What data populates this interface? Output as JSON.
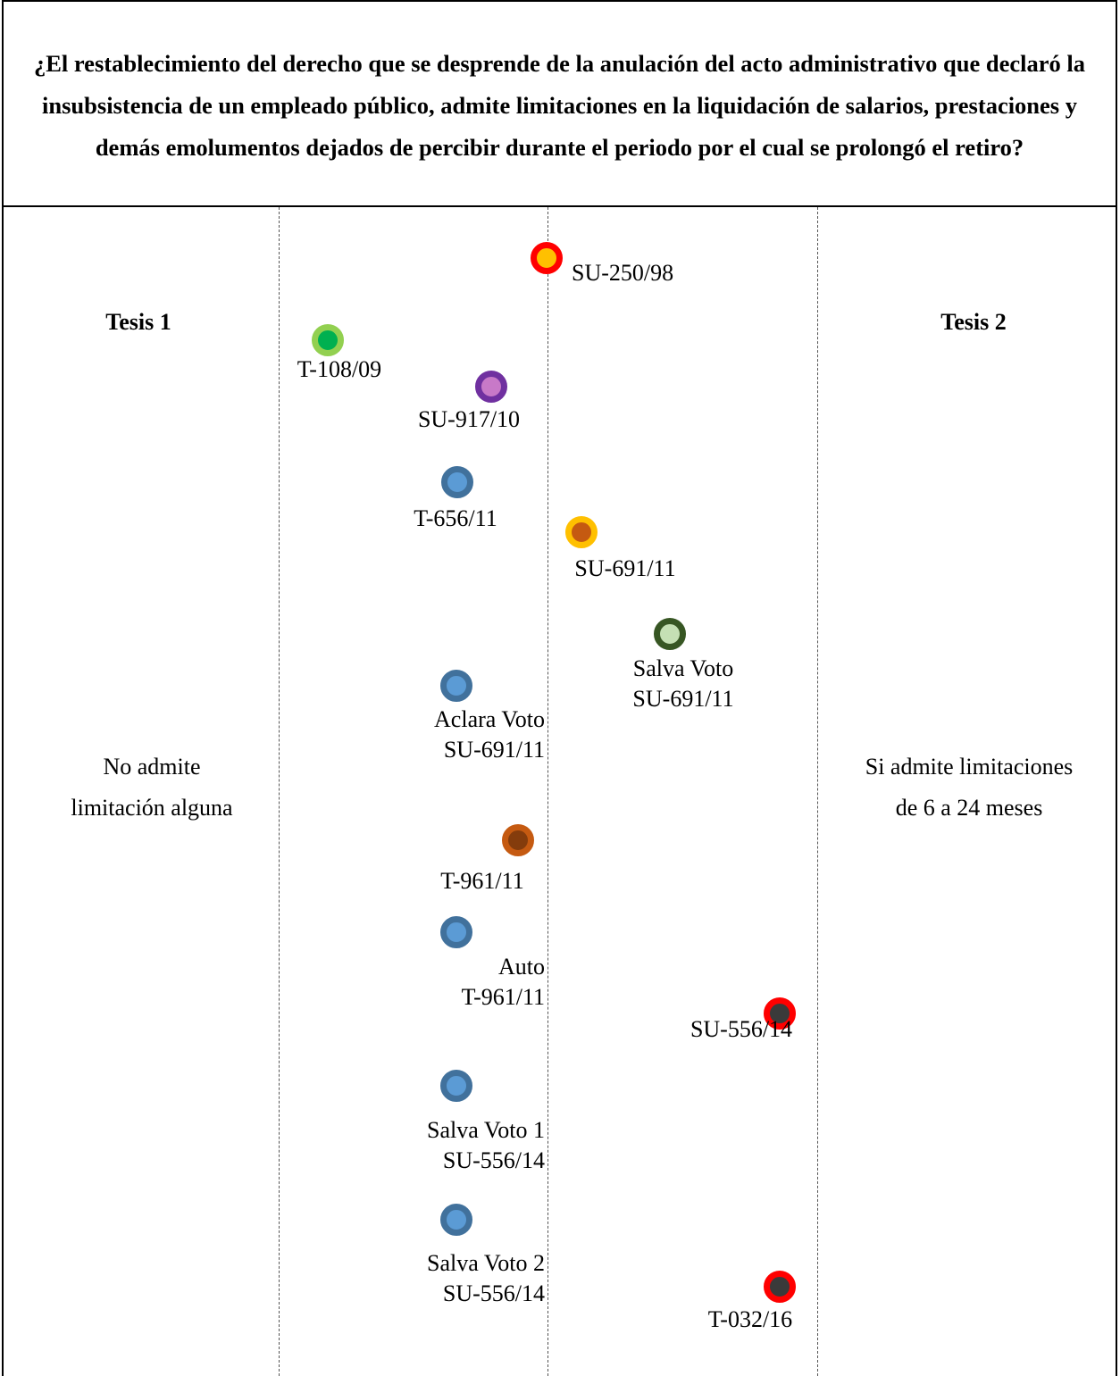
{
  "question": "¿El restablecimiento del derecho que se desprende de la anulación del acto administrativo que declaró la insubsistencia de un empleado público, admite limitaciones en la liquidación de salarios, prestaciones y demás emolumentos dejados de percibir durante el periodo por el cual se prolongó el retiro?",
  "thesis1": {
    "title": "Tesis 1",
    "description": "No admite\nlimitación alguna"
  },
  "thesis2": {
    "title": "Tesis 2",
    "description": "Si admite limitaciones\nde 6 a 24 meses"
  },
  "rulings": [
    {
      "label": "SU-250/98",
      "ring": "#FF0000",
      "fill": "#FFC000"
    },
    {
      "label": "T-108/09",
      "ring": "#92D050",
      "fill": "#00B050"
    },
    {
      "label": "SU-917/10",
      "ring": "#7030A0",
      "fill": "#C879C8"
    },
    {
      "label": "T-656/11",
      "ring": "#41719C",
      "fill": "#5B9BD5"
    },
    {
      "label": "SU-691/11",
      "ring": "#FFC000",
      "fill": "#C55A11"
    },
    {
      "label": "Salva Voto\nSU-691/11",
      "ring": "#375623",
      "fill": "#C5E0B4"
    },
    {
      "label": "Aclara Voto\nSU-691/11",
      "ring": "#41719C",
      "fill": "#5B9BD5"
    },
    {
      "label": "T-961/11",
      "ring": "#C55A11",
      "fill": "#843C0C"
    },
    {
      "label": "Auto\nT-961/11",
      "ring": "#41719C",
      "fill": "#5B9BD5"
    },
    {
      "label": "SU-556/14",
      "ring": "#FF0000",
      "fill": "#3A3A3A"
    },
    {
      "label": "Salva Voto 1\nSU-556/14",
      "ring": "#41719C",
      "fill": "#5B9BD5"
    },
    {
      "label": "Salva Voto 2\nSU-556/14",
      "ring": "#41719C",
      "fill": "#5B9BD5"
    },
    {
      "label": "T-032/16",
      "ring": "#FF0000",
      "fill": "#3A3A3A"
    }
  ]
}
